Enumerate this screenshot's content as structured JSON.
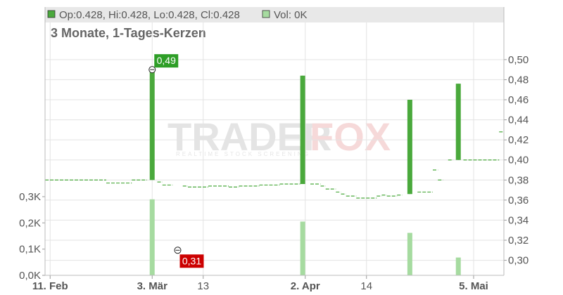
{
  "chart_data": {
    "type": "candlestick",
    "subtitle": "3 Monate, 1-Tages-Kerzen",
    "legend": {
      "ohlc_text": "Op:0.428, Hi:0.428, Lo:0.428, Cl:0.428",
      "vol_text": "Vol: 0K",
      "price_color": "#4aa93c",
      "volume_color": "#a6dba0"
    },
    "watermark": {
      "brand_left": "TRADER",
      "brand_right": "FOX",
      "tagline": "REALTIME STOCK SCREENING"
    },
    "price_axis": {
      "ylim": [
        0.285,
        0.53
      ],
      "ticks": [
        0.3,
        0.32,
        0.34,
        0.36,
        0.38,
        0.4,
        0.42,
        0.44,
        0.46,
        0.48,
        0.5
      ],
      "tick_labels": [
        "0,30",
        "0,32",
        "0,34",
        "0,36",
        "0,38",
        "0,40",
        "0,42",
        "0,44",
        "0,46",
        "0,48",
        "0,50"
      ]
    },
    "volume_axis": {
      "ylim": [
        0,
        350
      ],
      "ticks": [
        0,
        100,
        200,
        300
      ],
      "tick_labels": [
        "0,0K",
        "0,1K",
        "0,2K",
        "0,3K"
      ]
    },
    "x_axis": {
      "labels": [
        {
          "text": "11. Feb",
          "day": 1,
          "bold": true
        },
        {
          "text": "3. Mär",
          "day": 21,
          "bold": true
        },
        {
          "text": "13",
          "day": 31,
          "bold": false
        },
        {
          "text": "2. Apr",
          "day": 51,
          "bold": true
        },
        {
          "text": "14",
          "day": 63,
          "bold": false
        },
        {
          "text": "5. Mai",
          "day": 84,
          "bold": true
        }
      ]
    },
    "segments": [
      {
        "d0": 0,
        "d1": 12,
        "price": 0.38
      },
      {
        "d0": 12,
        "d1": 17,
        "price": 0.377
      },
      {
        "d0": 17,
        "d1": 20,
        "price": 0.38
      },
      {
        "d0": 22,
        "d1": 23,
        "price": 0.378
      },
      {
        "d0": 23,
        "d1": 25,
        "price": 0.375
      },
      {
        "d0": 27,
        "d1": 28,
        "price": 0.374
      },
      {
        "d0": 28,
        "d1": 32,
        "price": 0.373
      },
      {
        "d0": 32,
        "d1": 36,
        "price": 0.374
      },
      {
        "d0": 36,
        "d1": 38,
        "price": 0.373
      },
      {
        "d0": 38,
        "d1": 42,
        "price": 0.374
      },
      {
        "d0": 42,
        "d1": 46,
        "price": 0.375
      },
      {
        "d0": 46,
        "d1": 50,
        "price": 0.376
      },
      {
        "d0": 52,
        "d1": 54,
        "price": 0.376
      },
      {
        "d0": 54,
        "d1": 55,
        "price": 0.374
      },
      {
        "d0": 55,
        "d1": 57,
        "price": 0.371
      },
      {
        "d0": 57,
        "d1": 58,
        "price": 0.368
      },
      {
        "d0": 58,
        "d1": 59,
        "price": 0.366
      },
      {
        "d0": 59,
        "d1": 61,
        "price": 0.364
      },
      {
        "d0": 61,
        "d1": 65,
        "price": 0.362
      },
      {
        "d0": 65,
        "d1": 66,
        "price": 0.364
      },
      {
        "d0": 66,
        "d1": 67,
        "price": 0.365
      },
      {
        "d0": 67,
        "d1": 69,
        "price": 0.364
      },
      {
        "d0": 69,
        "d1": 70,
        "price": 0.365
      },
      {
        "d0": 73,
        "d1": 76,
        "price": 0.368
      },
      {
        "d0": 76,
        "d1": 77,
        "price": 0.39
      },
      {
        "d0": 77,
        "d1": 78,
        "price": 0.38
      },
      {
        "d0": 79,
        "d1": 80,
        "price": 0.4
      },
      {
        "d0": 82,
        "d1": 89,
        "price": 0.4
      },
      {
        "d0": 89,
        "d1": 90,
        "price": 0.428
      }
    ],
    "candles": [
      {
        "day": 21,
        "open": 0.38,
        "high": 0.49,
        "close": 0.49,
        "low": 0.38
      },
      {
        "day": 50.5,
        "open": 0.376,
        "high": 0.484,
        "close": 0.484,
        "low": 0.376
      },
      {
        "day": 71.5,
        "open": 0.366,
        "high": 0.46,
        "close": 0.46,
        "low": 0.366
      },
      {
        "day": 81,
        "open": 0.4,
        "high": 0.476,
        "close": 0.476,
        "low": 0.4
      }
    ],
    "volume": [
      {
        "day": 21,
        "value": 290
      },
      {
        "day": 50.5,
        "value": 205
      },
      {
        "day": 71.5,
        "value": 162
      },
      {
        "day": 81,
        "value": 68
      }
    ],
    "annotations": [
      {
        "text": "0,49",
        "kind": "high",
        "day": 21,
        "price": 0.49,
        "color": "#2e9e27"
      },
      {
        "text": "0,31",
        "kind": "low",
        "day": 26,
        "price": 0.31,
        "color": "#cc0000"
      }
    ]
  }
}
